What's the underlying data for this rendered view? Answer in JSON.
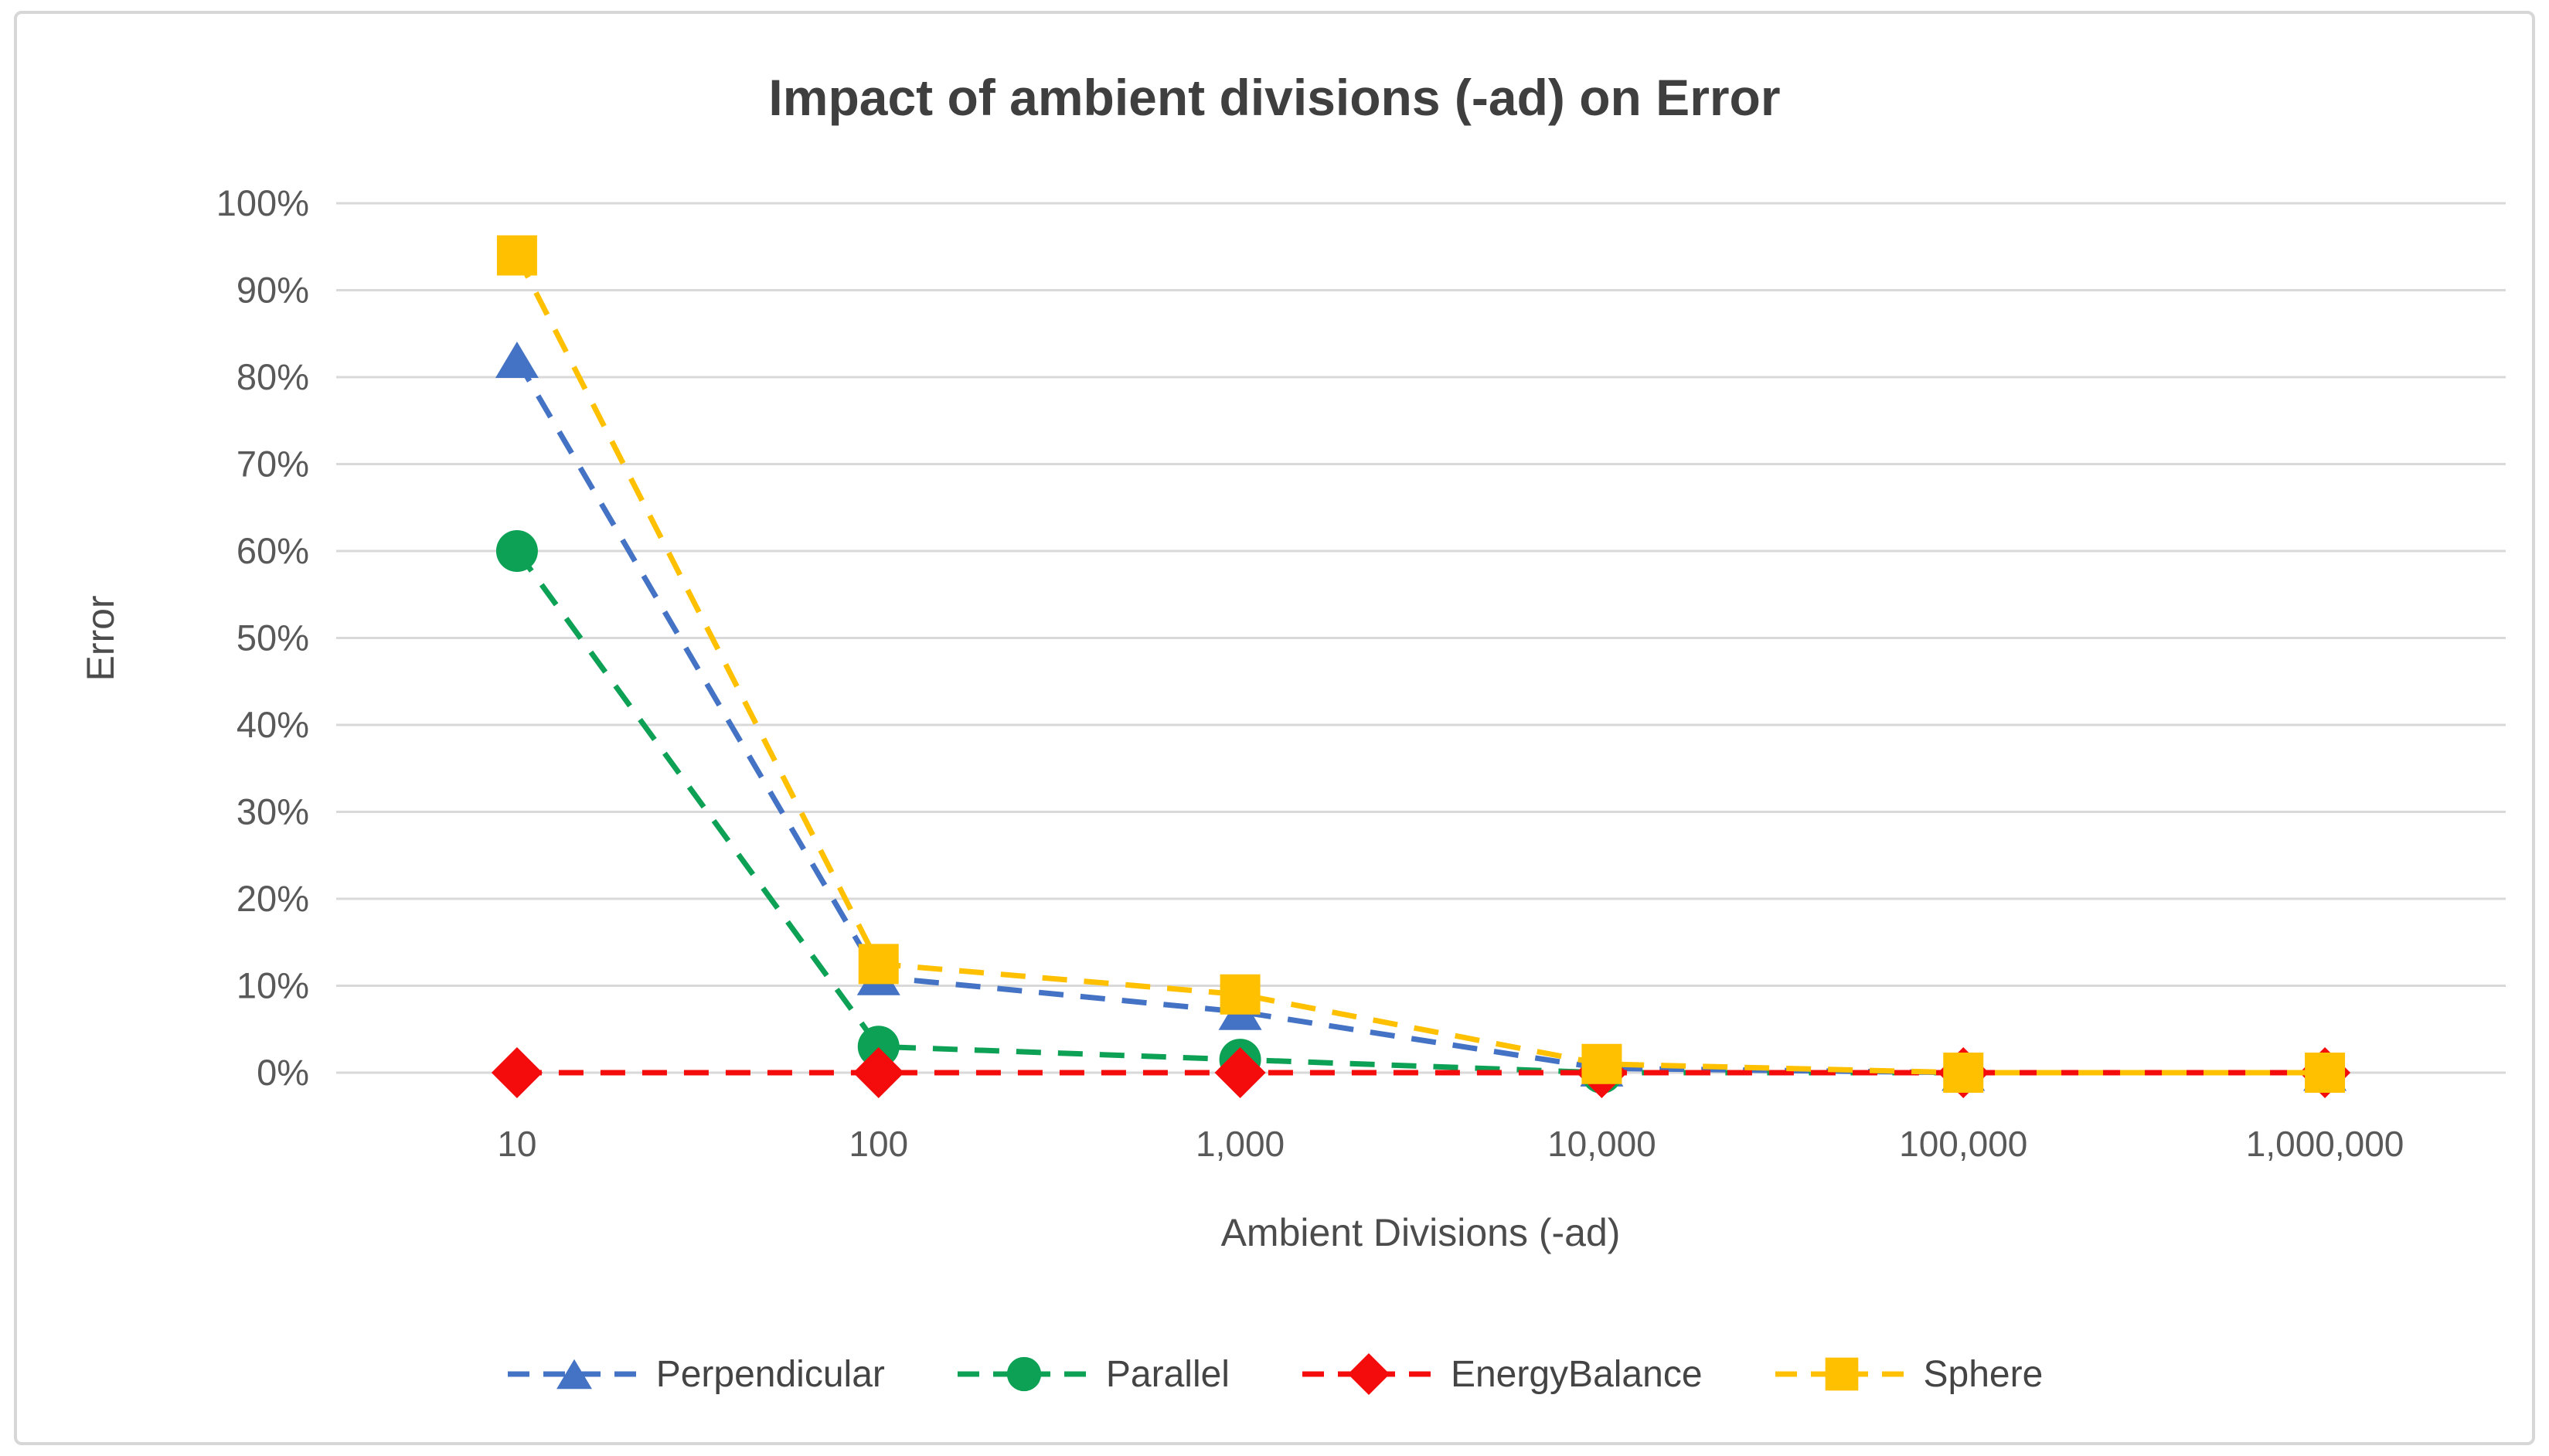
{
  "chart_data": {
    "type": "line",
    "title": "Impact of ambient divisions (-ad) on Error",
    "xlabel": "Ambient Divisions (-ad)",
    "ylabel": "Error",
    "categories": [
      "10",
      "100",
      "1,000",
      "10,000",
      "100,000",
      "1,000,000"
    ],
    "x_scale": "categorical-log-steps",
    "y_ticks": [
      "0%",
      "10%",
      "20%",
      "30%",
      "40%",
      "50%",
      "60%",
      "70%",
      "80%",
      "90%",
      "100%"
    ],
    "ylim": [
      0,
      100
    ],
    "grid": true,
    "line_style": "dashed",
    "legend_position": "bottom",
    "colors": {
      "grid": "#D9D9D9",
      "axis_text": "#595959",
      "title_text": "#3F3F3F",
      "frame_border": "#D7D7D7"
    },
    "series": [
      {
        "name": "Perpendicular",
        "color": "#4472C4",
        "marker": "triangle",
        "values": [
          82,
          11,
          7,
          0.5,
          0,
          0
        ]
      },
      {
        "name": "Parallel",
        "color": "#0DA155",
        "marker": "circle",
        "values": [
          60,
          3,
          1.5,
          0,
          0,
          0
        ]
      },
      {
        "name": "EnergyBalance",
        "color": "#F40B0B",
        "marker": "diamond",
        "values": [
          0,
          0,
          0,
          0,
          0,
          0
        ]
      },
      {
        "name": "Sphere",
        "color": "#FFC000",
        "marker": "square",
        "values": [
          94,
          12.5,
          9,
          1,
          0,
          0
        ]
      }
    ]
  }
}
